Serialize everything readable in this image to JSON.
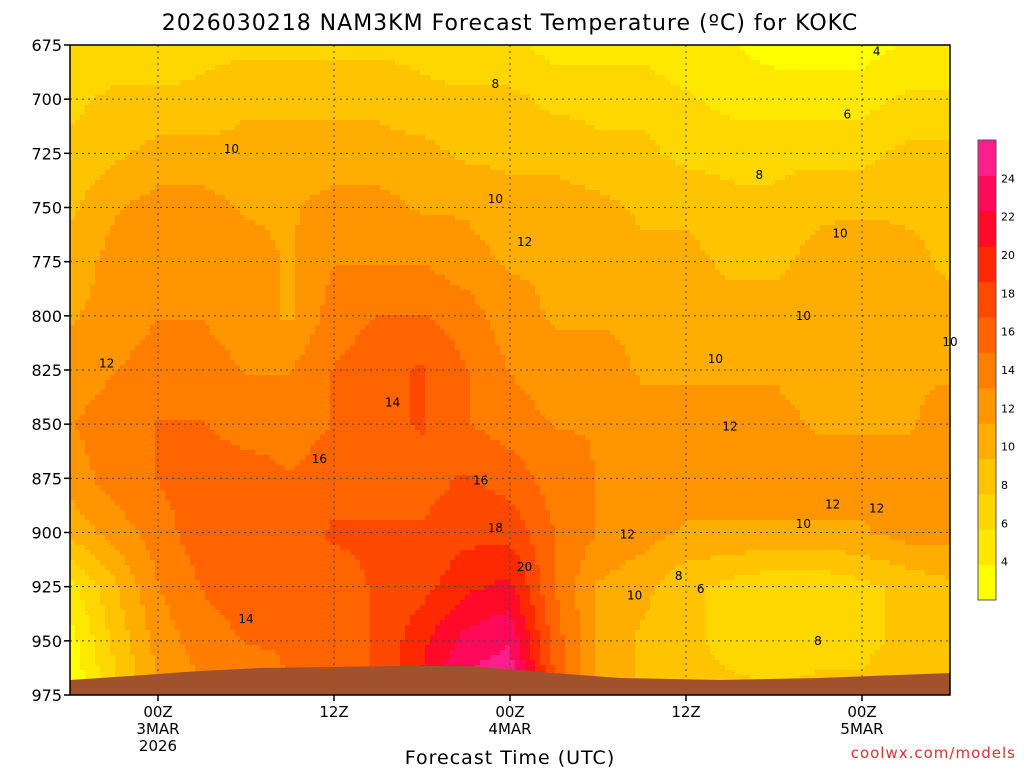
{
  "chart_data": {
    "type": "heatmap",
    "title": "2026030218 NAM3KM Forecast Temperature (ºC) for KOKC",
    "xlabel": "Forecast Time (UTC)",
    "ylabel": "",
    "credit": "coolwx.com/models",
    "y_axis": {
      "ticks": [
        675,
        700,
        725,
        750,
        775,
        800,
        825,
        850,
        875,
        900,
        925,
        950,
        975
      ],
      "ylim": [
        975,
        675
      ],
      "inverted": true
    },
    "x_axis": {
      "ticks": [
        {
          "hour": 0,
          "label": "00Z",
          "sub": [
            "3MAR",
            "2026"
          ]
        },
        {
          "hour": 12,
          "label": "12Z",
          "sub": []
        },
        {
          "hour": 24,
          "label": "00Z",
          "sub": [
            "4MAR"
          ]
        },
        {
          "hour": 36,
          "label": "12Z",
          "sub": []
        },
        {
          "hour": 48,
          "label": "00Z",
          "sub": [
            "5MAR"
          ]
        }
      ],
      "xlim": [
        -6,
        54
      ]
    },
    "grid": true,
    "colorbar": {
      "ticks": [
        4,
        6,
        8,
        10,
        12,
        14,
        16,
        18,
        20,
        22,
        24
      ],
      "range": [
        2,
        26
      ],
      "colors": [
        "#ffff00",
        "#ffe800",
        "#ffd700",
        "#ffc400",
        "#ffad00",
        "#ff9500",
        "#ff7e00",
        "#ff6400",
        "#ff4800",
        "#ff2800",
        "#ff0a28",
        "#ff0a5a",
        "#ff1e8c"
      ],
      "placement": "right"
    },
    "hours": [
      -6,
      -3,
      0,
      3,
      6,
      9,
      12,
      15,
      18,
      21,
      24,
      27,
      30,
      33,
      36,
      39,
      42,
      45,
      48,
      51,
      54
    ],
    "levels": [
      675,
      700,
      725,
      750,
      775,
      800,
      825,
      850,
      875,
      900,
      925,
      950,
      975
    ],
    "values": [
      [
        6,
        6,
        6,
        7,
        7,
        7,
        7,
        7,
        7,
        6,
        6,
        5,
        5,
        5,
        4,
        4,
        3,
        3,
        3,
        4,
        4
      ],
      [
        7,
        8,
        8,
        8,
        9,
        9,
        9,
        9,
        8,
        8,
        8,
        7,
        7,
        7,
        6,
        5,
        5,
        5,
        5,
        6,
        6
      ],
      [
        8,
        9,
        10,
        10,
        10,
        10,
        10,
        10,
        10,
        9,
        9,
        9,
        8,
        8,
        7,
        7,
        7,
        7,
        7,
        8,
        8
      ],
      [
        9,
        11,
        12,
        12,
        11,
        11,
        12,
        12,
        11,
        11,
        10,
        10,
        10,
        9,
        9,
        8,
        8,
        9,
        9,
        9,
        9
      ],
      [
        10,
        12,
        13,
        13,
        12,
        11,
        13,
        13,
        13,
        12,
        11,
        11,
        11,
        10,
        10,
        9,
        9,
        10,
        11,
        10,
        9
      ],
      [
        11,
        12,
        13,
        13,
        12,
        11,
        14,
        15,
        15,
        14,
        12,
        11,
        11,
        11,
        10,
        10,
        10,
        10,
        10,
        10,
        10
      ],
      [
        12,
        13,
        14,
        14,
        13,
        13,
        15,
        16,
        17,
        15,
        13,
        12,
        12,
        11,
        11,
        11,
        11,
        10,
        10,
        11,
        11
      ],
      [
        13,
        14,
        15,
        15,
        14,
        14,
        15,
        16,
        17,
        15,
        14,
        13,
        13,
        12,
        12,
        12,
        12,
        11,
        11,
        11,
        12
      ],
      [
        12,
        14,
        15,
        16,
        16,
        15,
        16,
        16,
        16,
        17,
        16,
        14,
        13,
        13,
        12,
        12,
        12,
        12,
        12,
        12,
        12
      ],
      [
        10,
        12,
        14,
        16,
        16,
        16,
        17,
        17,
        17,
        18,
        18,
        15,
        13,
        12,
        11,
        11,
        11,
        11,
        11,
        12,
        12
      ],
      [
        5,
        9,
        13,
        15,
        16,
        16,
        16,
        17,
        18,
        20,
        21,
        15,
        11,
        10,
        8,
        7,
        6,
        6,
        7,
        8,
        9
      ],
      [
        3,
        8,
        12,
        14,
        15,
        15,
        16,
        17,
        20,
        23,
        24,
        16,
        11,
        9,
        8,
        7,
        6,
        7,
        7,
        8,
        9
      ],
      [
        2,
        7,
        11,
        13,
        14,
        15,
        16,
        17,
        21,
        25,
        26,
        17,
        11,
        9,
        8,
        8,
        8,
        8,
        8,
        9,
        9
      ]
    ],
    "contour_labels": [
      {
        "text": "4",
        "hour": 49,
        "level": 678
      },
      {
        "text": "6",
        "hour": 47,
        "level": 707
      },
      {
        "text": "8",
        "hour": 41,
        "level": 735
      },
      {
        "text": "8",
        "hour": 23,
        "level": 693
      },
      {
        "text": "8",
        "hour": 35.5,
        "level": 920
      },
      {
        "text": "8",
        "hour": 45,
        "level": 950
      },
      {
        "text": "10",
        "hour": 5,
        "level": 723
      },
      {
        "text": "10",
        "hour": 23,
        "level": 746
      },
      {
        "text": "10",
        "hour": 46.5,
        "level": 762
      },
      {
        "text": "10",
        "hour": 44,
        "level": 800
      },
      {
        "text": "10",
        "hour": 38,
        "level": 820
      },
      {
        "text": "10",
        "hour": 54,
        "level": 812
      },
      {
        "text": "10",
        "hour": 44,
        "level": 896
      },
      {
        "text": "10",
        "hour": 32.5,
        "level": 929
      },
      {
        "text": "12",
        "hour": 25,
        "level": 766
      },
      {
        "text": "12",
        "hour": -3.5,
        "level": 822
      },
      {
        "text": "12",
        "hour": 39,
        "level": 851
      },
      {
        "text": "12",
        "hour": 46,
        "level": 887
      },
      {
        "text": "12",
        "hour": 49,
        "level": 889
      },
      {
        "text": "12",
        "hour": 32,
        "level": 901
      },
      {
        "text": "14",
        "hour": 16,
        "level": 840
      },
      {
        "text": "14",
        "hour": 6,
        "level": 940
      },
      {
        "text": "16",
        "hour": 11,
        "level": 866
      },
      {
        "text": "16",
        "hour": 22,
        "level": 876
      },
      {
        "text": "18",
        "hour": 23,
        "level": 898
      },
      {
        "text": "20",
        "hour": 25,
        "level": 916
      },
      {
        "text": "6",
        "hour": 37,
        "level": 926
      }
    ]
  }
}
